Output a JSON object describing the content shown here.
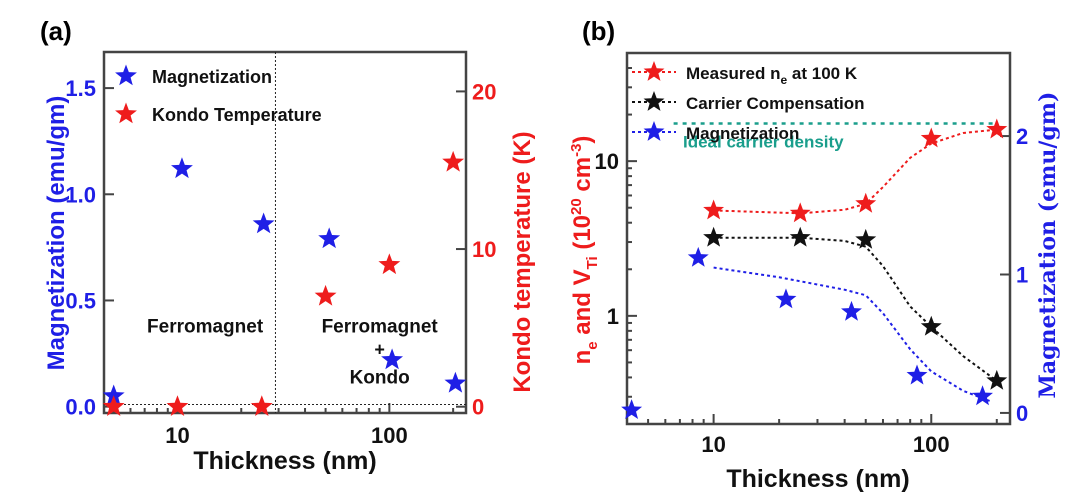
{
  "colors": {
    "magnetization": "#1f1fe6",
    "kondo": "#ee1c1c",
    "carrier": "#111111",
    "ideal": "#1a9e8c",
    "axis": "#444444"
  },
  "chart_data": [
    {
      "type": "scatter",
      "panel_label": "(a)",
      "xlabel": "Thickness (nm)",
      "ylabel_left": "Magnetization (emu/gm)",
      "ylabel_right": "Kondo temperature (K)",
      "x_scale": "log",
      "xlim": [
        4.5,
        230
      ],
      "ylim_left": [
        -0.03,
        1.67
      ],
      "ylim_right": [
        -0.4,
        22.5
      ],
      "x_ticks": [
        {
          "v": 10,
          "label": "10"
        },
        {
          "v": 100,
          "label": "100"
        }
      ],
      "y_left_ticks": [
        {
          "v": 0,
          "label": "0.0"
        },
        {
          "v": 0.5,
          "label": "0.5"
        },
        {
          "v": 1.0,
          "label": "1.0"
        },
        {
          "v": 1.5,
          "label": "1.5"
        }
      ],
      "y_right_ticks": [
        {
          "v": 0,
          "label": "0"
        },
        {
          "v": 10,
          "label": "10"
        },
        {
          "v": 20,
          "label": "20"
        }
      ],
      "series": [
        {
          "name": "Magnetization",
          "axis": "left",
          "color": "#1f1fe6",
          "x": [
            5,
            10.5,
            25.5,
            52,
            103,
            205
          ],
          "y": [
            0.05,
            1.12,
            0.86,
            0.79,
            0.22,
            0.11
          ]
        },
        {
          "name": "Kondo Temperature",
          "axis": "right",
          "color": "#ee1c1c",
          "x": [
            5,
            10,
            25,
            50,
            100,
            200
          ],
          "y": [
            0,
            0,
            0,
            7,
            9,
            15.5
          ]
        }
      ],
      "annotations": [
        {
          "text": "Ferromagnet",
          "x": 13.5,
          "y": 0.35
        },
        {
          "text": "Ferromagnet",
          "x": 90,
          "y": 0.35
        },
        {
          "text": "+",
          "x": 90,
          "y": 0.24
        },
        {
          "text": "Kondo",
          "x": 90,
          "y": 0.11
        }
      ],
      "reference_lines": {
        "vertical_x": 29,
        "horizontal_y": 0.01
      },
      "legend_position": "top-left"
    },
    {
      "type": "scatter",
      "panel_label": "(b)",
      "xlabel": "Thickness (nm)",
      "ylabel_left": [
        "n",
        "e",
        " and V",
        "Ti",
        " (10",
        "20",
        " cm",
        "-3",
        ")"
      ],
      "ylabel_right": "Magnetization (emu/gm)",
      "x_scale": "log",
      "y_scale_left": "log",
      "xlim": [
        4,
        230
      ],
      "ylim_left": [
        0.2,
        50
      ],
      "ylim_right": [
        -0.08,
        2.6
      ],
      "x_ticks": [
        {
          "v": 10,
          "label": "10"
        },
        {
          "v": 100,
          "label": "100"
        }
      ],
      "y_left_ticks": [
        {
          "v": 1,
          "label": "1"
        },
        {
          "v": 10,
          "label": "10"
        }
      ],
      "y_right_ticks": [
        {
          "v": 0,
          "label": "0"
        },
        {
          "v": 1,
          "label": "1"
        },
        {
          "v": 2,
          "label": "2"
        }
      ],
      "series": [
        {
          "name": "Measured n",
          "name_sub": "e",
          "name_suffix": " at 100 K",
          "axis": "left",
          "color": "#ee1c1c",
          "x": [
            10,
            25,
            50,
            100,
            200
          ],
          "y": [
            4.8,
            4.6,
            5.3,
            14,
            16
          ],
          "trend": {
            "x": [
              10,
              25,
              40,
              50,
              60,
              80,
              100,
              140,
              200
            ],
            "y": [
              4.8,
              4.6,
              4.85,
              5.3,
              6.8,
              10.5,
              13,
              15.2,
              16
            ]
          }
        },
        {
          "name": "Carrier Compensation",
          "axis": "left",
          "color": "#111111",
          "x": [
            10,
            25,
            50,
            100,
            200
          ],
          "y": [
            3.2,
            3.2,
            3.1,
            0.85,
            0.38
          ],
          "trend": {
            "x": [
              10,
              25,
              40,
              50,
              60,
              80,
              100,
              140,
              200
            ],
            "y": [
              3.2,
              3.2,
              3.05,
              2.8,
              2.1,
              1.15,
              0.85,
              0.55,
              0.38
            ]
          }
        },
        {
          "name": "Magnetization",
          "axis": "right",
          "color": "#1f1fe6",
          "x": [
            4.2,
            8.5,
            21.5,
            43,
            86,
            172
          ],
          "y": [
            0.02,
            1.12,
            0.82,
            0.73,
            0.27,
            0.12
          ],
          "trend": {
            "x": [
              10,
              20,
              40,
              50,
              60,
              80,
              100,
              140,
              190
            ],
            "y": [
              1.05,
              0.98,
              0.89,
              0.85,
              0.72,
              0.46,
              0.3,
              0.16,
              0.08
            ]
          }
        }
      ],
      "ideal_line": {
        "label": "Ideal carrier density",
        "y": 17.5,
        "x": [
          10,
          200
        ]
      },
      "legend_position": "top-left"
    }
  ]
}
